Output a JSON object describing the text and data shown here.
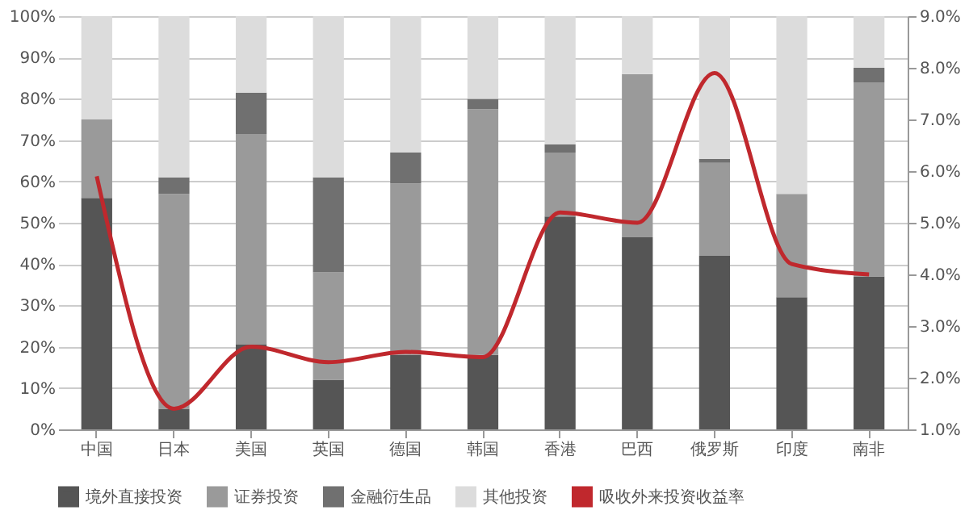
{
  "chart_data": {
    "type": "bar",
    "stacked": true,
    "categories": [
      "中国",
      "日本",
      "美国",
      "英国",
      "德国",
      "韩国",
      "香港",
      "巴西",
      "俄罗斯",
      "印度",
      "南非"
    ],
    "series": [
      {
        "name": "境外直接投资",
        "color": "#555555",
        "values": [
          56,
          5,
          20.5,
          12,
          18,
          18,
          51.5,
          46.5,
          42,
          32,
          37
        ]
      },
      {
        "name": "证券投资",
        "color": "#9a9a9a",
        "values": [
          19,
          52,
          51,
          26,
          41.5,
          59.5,
          15.5,
          39.5,
          22.5,
          25,
          47
        ]
      },
      {
        "name": "金融衍生品",
        "color": "#707070",
        "values": [
          0,
          4,
          10,
          23,
          7.5,
          2.5,
          2,
          0,
          1,
          0,
          3.5
        ]
      },
      {
        "name": "其他投资",
        "color": "#dcdcdc",
        "values": [
          25,
          39,
          18.5,
          39,
          33,
          20,
          31,
          14,
          34.5,
          43,
          12.5
        ]
      },
      {
        "name": "吸收外来投资收益率",
        "color": "#c0282d",
        "type": "line",
        "axis": "y2",
        "values": [
          5.9,
          1.4,
          2.6,
          2.3,
          2.5,
          2.4,
          5.2,
          5.0,
          7.9,
          4.2,
          4.0
        ]
      }
    ],
    "ylim": [
      0,
      100
    ],
    "yticks": [
      {
        "value": 0,
        "label": "0%"
      },
      {
        "value": 10,
        "label": "10%"
      },
      {
        "value": 20,
        "label": "20%"
      },
      {
        "value": 30,
        "label": "30%"
      },
      {
        "value": 40,
        "label": "40%"
      },
      {
        "value": 50,
        "label": "50%"
      },
      {
        "value": 60,
        "label": "60%"
      },
      {
        "value": 70,
        "label": "70%"
      },
      {
        "value": 80,
        "label": "80%"
      },
      {
        "value": 90,
        "label": "90%"
      },
      {
        "value": 100,
        "label": "100%"
      }
    ],
    "y2lim": [
      1,
      9
    ],
    "y2ticks": [
      {
        "value": 1,
        "label": "1.0%"
      },
      {
        "value": 2,
        "label": "2.0%"
      },
      {
        "value": 3,
        "label": "3.0%"
      },
      {
        "value": 4,
        "label": "4.0%"
      },
      {
        "value": 5,
        "label": "5.0%"
      },
      {
        "value": 6,
        "label": "6.0%"
      },
      {
        "value": 7,
        "label": "7.0%"
      },
      {
        "value": 8,
        "label": "8.0%"
      },
      {
        "value": 9,
        "label": "9.0%"
      }
    ],
    "grid": "y",
    "legend": "bottom"
  }
}
